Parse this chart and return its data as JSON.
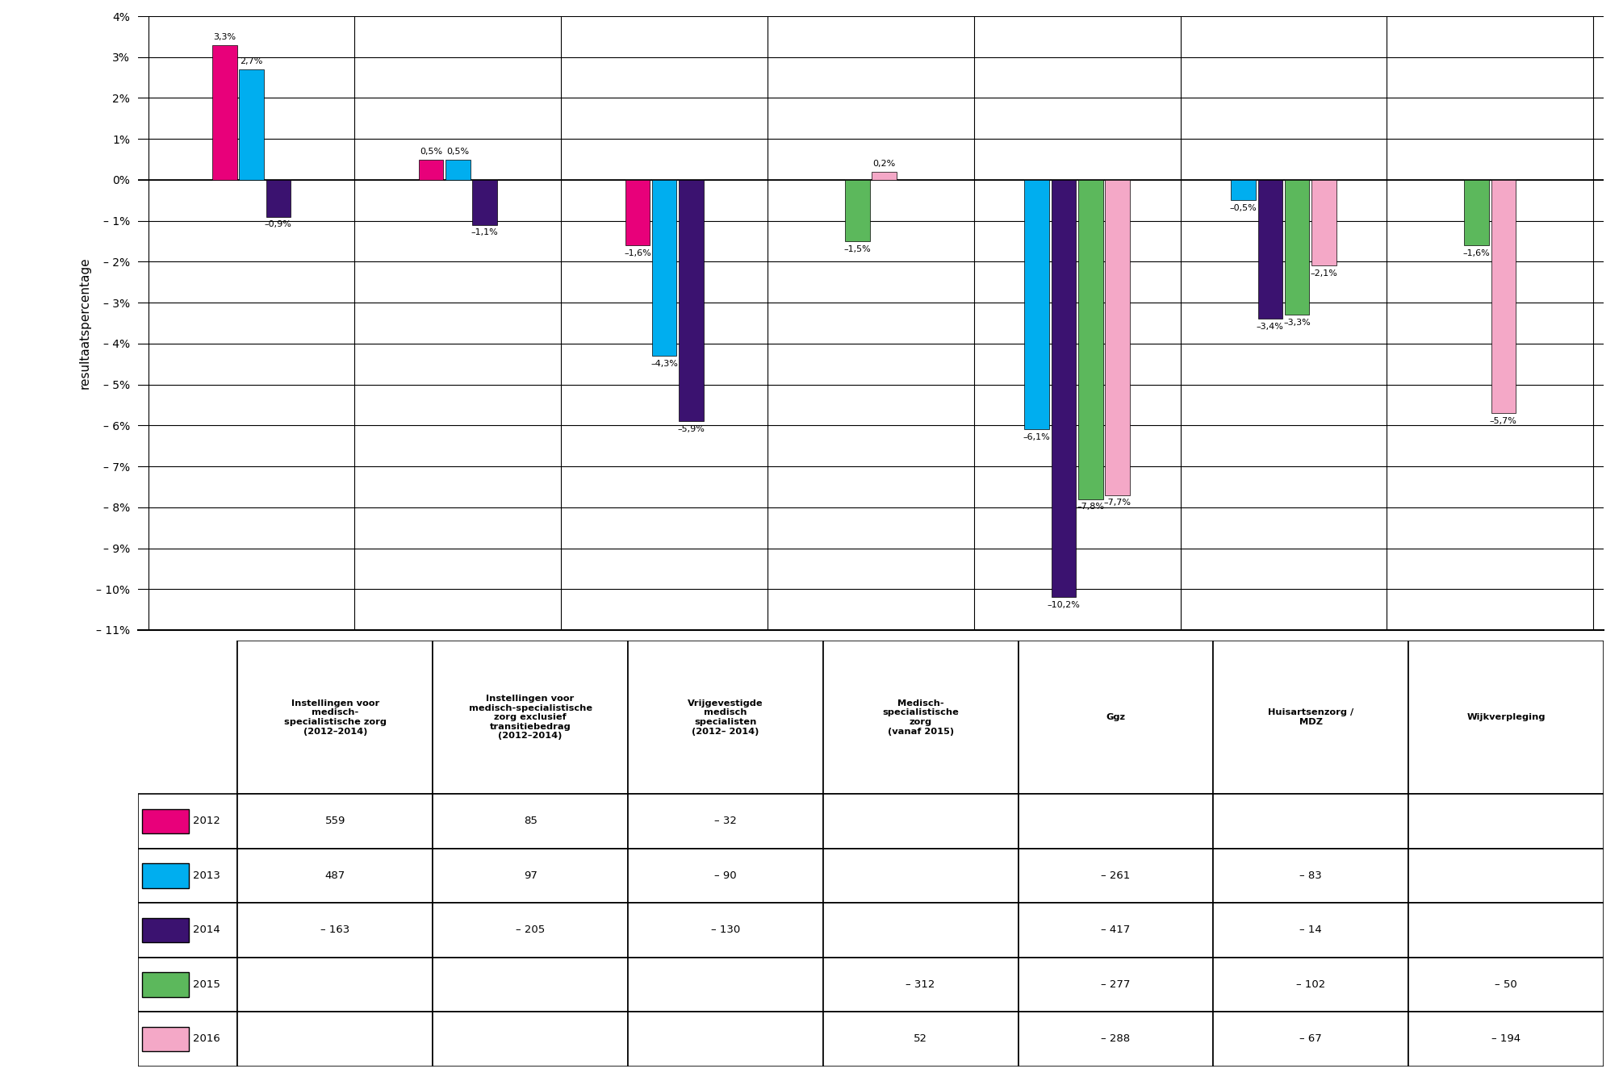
{
  "ylabel": "resultaatspercentage",
  "ylim": [
    -11,
    4
  ],
  "yticks": [
    4,
    3,
    2,
    1,
    0,
    -1,
    -2,
    -3,
    -4,
    -5,
    -6,
    -7,
    -8,
    -9,
    -10,
    -11
  ],
  "ytick_labels": [
    "4%",
    "3%",
    "2%",
    "1%",
    "0%",
    "– 1%",
    "– 2%",
    "– 3%",
    "– 4%",
    "– 5%",
    "– 6%",
    "– 7%",
    "– 8%",
    "– 9%",
    "– 10%",
    "– 11%"
  ],
  "groups": [
    "Instellingen voor\nmedisch-\nspecialistische zorg\n(2012–2014)",
    "Instellingen voor\nmedisch-specialistische\nzorg exclusief\ntransitiebedrag\n(2012–2014)",
    "Vrijgevestigde\nmedisch\nspecialisten\n(2012– 2014)",
    "Medisch-\nspecialistische\nzorg\n(vanaf 2015)",
    "Ggz",
    "Huisartsenzorg /\nMDZ",
    "Wijkverpleging"
  ],
  "series": [
    "2012",
    "2013",
    "2014",
    "2015",
    "2016"
  ],
  "colors": [
    "#E8007A",
    "#00AEEF",
    "#3B1270",
    "#5CB85C",
    "#F4A8C7"
  ],
  "bar_values": {
    "2012": [
      3.3,
      0.5,
      -1.6,
      null,
      null,
      null,
      null
    ],
    "2013": [
      2.7,
      0.5,
      -4.3,
      null,
      -6.1,
      -0.5,
      null
    ],
    "2014": [
      -0.9,
      -1.1,
      -5.9,
      null,
      -10.2,
      -3.4,
      null
    ],
    "2015": [
      null,
      null,
      null,
      -1.5,
      -7.8,
      -3.3,
      -1.6
    ],
    "2016": [
      null,
      null,
      null,
      0.2,
      -7.7,
      -2.1,
      -5.7
    ]
  },
  "bar_labels": {
    "2012": [
      "3,3%",
      "0,5%",
      "–1,6%",
      null,
      null,
      null,
      null
    ],
    "2013": [
      "2,7%",
      "0,5%",
      "–4,3%",
      null,
      "–6,1%",
      "–0,5%",
      null
    ],
    "2014": [
      "–0,9%",
      "–1,1%",
      "–5,9%",
      null,
      "–10,2%",
      "–3,4%",
      null
    ],
    "2015": [
      null,
      null,
      null,
      "–1,5%",
      "–7,8%",
      "–3,3%",
      "–1,6%"
    ],
    "2016": [
      null,
      null,
      null,
      "0,2%",
      "–7,7%",
      "–2,1%",
      "–5,7%"
    ]
  },
  "table_cols": [
    "Instellingen voor\nmedisch-\nspecialistische zorg\n(2012–2014)",
    "Instellingen voor\nmedisch-specialistische\nzorg exclusief\ntransitiebedrag\n(2012–2014)",
    "Vrijgevestigde\nmedisch\nspecialisten\n(2012– 2014)",
    "Medisch-\nspecialistische\nzorg\n(vanaf 2015)",
    "Ggz",
    "Huisartsenzorg /\nMDZ",
    "Wijkverpleging"
  ],
  "table_rows": [
    "2012",
    "2013",
    "2014",
    "2015",
    "2016"
  ],
  "table_values": [
    [
      "559",
      "85",
      "– 32",
      "",
      "",
      "",
      ""
    ],
    [
      "487",
      "97",
      "– 90",
      "",
      "– 261",
      "– 83",
      ""
    ],
    [
      "– 163",
      "– 205",
      "– 130",
      "",
      "– 417",
      "– 14",
      ""
    ],
    [
      "",
      "",
      "",
      "– 312",
      "– 277",
      "– 102",
      "– 50"
    ],
    [
      "",
      "",
      "",
      "52",
      "– 288",
      "– 67",
      "– 194"
    ]
  ],
  "background_color": "#FFFFFF"
}
